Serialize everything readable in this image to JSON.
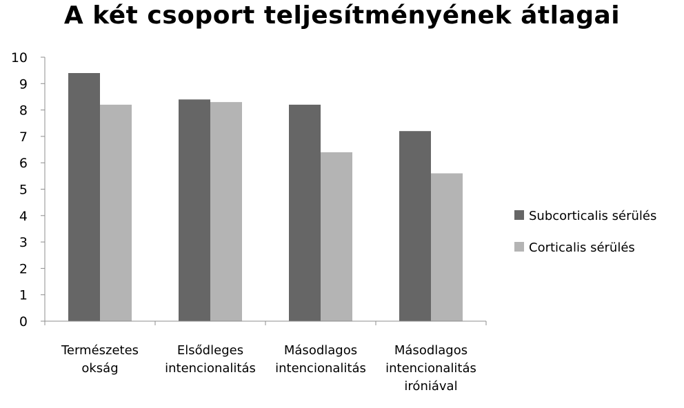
{
  "chart_data": {
    "type": "bar",
    "title": "A két csoport teljesítményének átlagai",
    "xlabel": "",
    "ylabel": "",
    "ylim": [
      0,
      10
    ],
    "yticks": [
      0,
      1,
      2,
      3,
      4,
      5,
      6,
      7,
      8,
      9,
      10
    ],
    "categories": [
      [
        "Természetes",
        "okság"
      ],
      [
        "Elsődleges",
        "intencionalitás"
      ],
      [
        "Másodlagos",
        "intencionalitás"
      ],
      [
        "Másodlagos",
        "intencionalitás",
        "iróniával"
      ]
    ],
    "series": [
      {
        "name": "Subcorticalis sérülés",
        "color": "#666666",
        "values": [
          9.4,
          8.4,
          8.2,
          7.2
        ]
      },
      {
        "name": "Corticalis sérülés",
        "color": "#b4b4b4",
        "values": [
          8.2,
          8.3,
          6.4,
          5.6
        ]
      }
    ],
    "grid": false,
    "legend": "right"
  }
}
